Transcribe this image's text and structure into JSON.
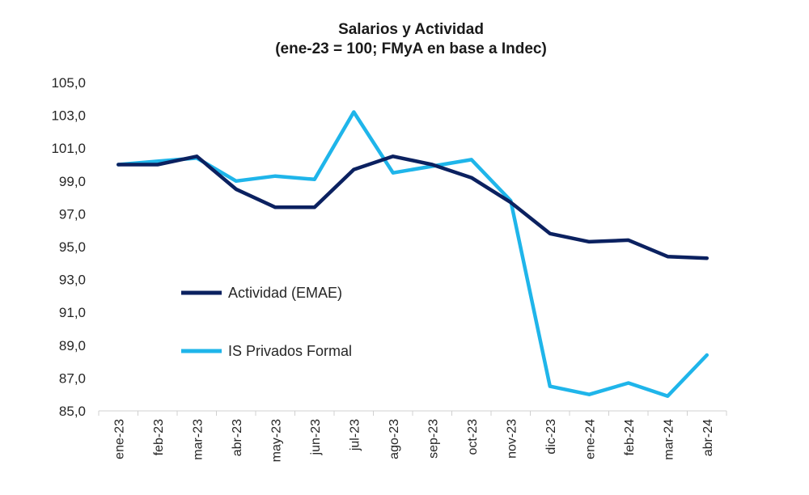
{
  "chart_data": {
    "type": "line",
    "title": "Salarios y Actividad",
    "subtitle": "(ene-23 = 100; FMyA en base a Indec)",
    "xlabel": "",
    "ylabel": "",
    "ylim": [
      85,
      105
    ],
    "yticks": [
      "105,0",
      "103,0",
      "101,0",
      "99,0",
      "97,0",
      "95,0",
      "93,0",
      "91,0",
      "89,0",
      "87,0",
      "85,0"
    ],
    "categories": [
      "ene-23",
      "feb-23",
      "mar-23",
      "abr-23",
      "may-23",
      "jun-23",
      "jul-23",
      "ago-23",
      "sep-23",
      "oct-23",
      "nov-23",
      "dic-23",
      "ene-24",
      "feb-24",
      "mar-24",
      "abr-24"
    ],
    "series": [
      {
        "name": "Actividad (EMAE)",
        "color": "#0b2160",
        "values": [
          100.0,
          100.0,
          100.5,
          98.5,
          97.4,
          97.4,
          99.7,
          100.5,
          100.0,
          99.2,
          97.7,
          95.8,
          95.3,
          95.4,
          94.4,
          94.3
        ]
      },
      {
        "name": "IS Privados Formal",
        "color": "#1fb5ea",
        "values": [
          100.0,
          100.2,
          100.4,
          99.0,
          99.3,
          99.1,
          103.2,
          99.5,
          99.9,
          100.3,
          97.8,
          86.5,
          86.0,
          86.7,
          85.9,
          88.4
        ]
      }
    ],
    "legend": "inside-left",
    "grid": false
  }
}
